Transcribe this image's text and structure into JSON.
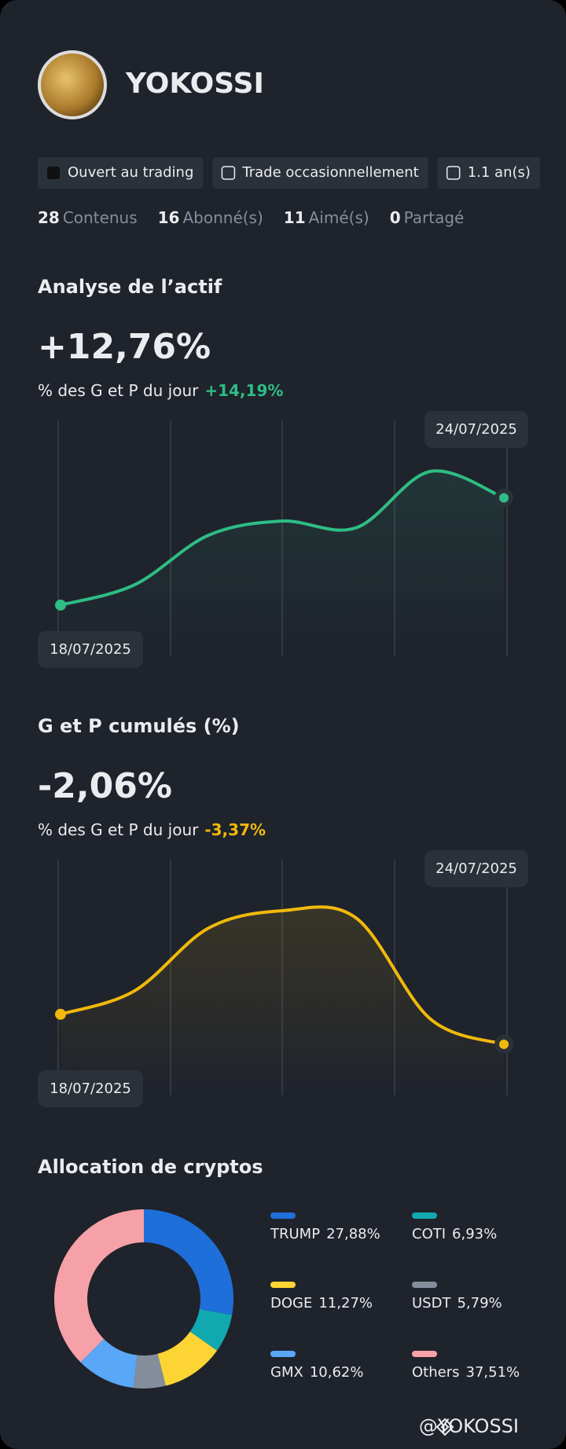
{
  "profile": {
    "name": "YOKOSSI",
    "badges": [
      "Ouvert au trading",
      "Trade occasionnellement",
      "1.1 an(s)"
    ],
    "stats": [
      {
        "count": "28",
        "label": "Contenus"
      },
      {
        "count": "16",
        "label": "Abonné(s)"
      },
      {
        "count": "11",
        "label": "Aimé(s)"
      },
      {
        "count": "0",
        "label": "Partagé"
      }
    ]
  },
  "charts": [
    {
      "type": "line",
      "title": "Analyse de l’actif",
      "headline": "+12,76%",
      "subtitle": "% des G et P du jour",
      "day_change": "+14,19%",
      "color": "#2ebd85",
      "start_date": "18/07/2025",
      "end_date": "24/07/2025",
      "values": [
        0,
        2.4,
        8.3,
        10.0,
        9.2,
        15.9,
        12.76
      ]
    },
    {
      "type": "line",
      "title": "G et P cumulés (%)",
      "headline": "-2,06%",
      "subtitle": "% des G et P du jour",
      "day_change": "-3,37%",
      "color": "#f0b90b",
      "start_date": "18/07/2025",
      "end_date": "24/07/2025",
      "values": [
        0,
        1.6,
        5.9,
        7.1,
        6.6,
        -0.3,
        -2.06
      ]
    },
    {
      "type": "pie",
      "title": "Allocation de cryptos",
      "series": [
        {
          "name": "TRUMP",
          "value": 27.88,
          "label": "27,88%",
          "color": "#1e6fd9"
        },
        {
          "name": "COTI",
          "value": 6.93,
          "label": "6,93%",
          "color": "#12a8b0"
        },
        {
          "name": "DOGE",
          "value": 11.27,
          "label": "11,27%",
          "color": "#fcd535"
        },
        {
          "name": "USDT",
          "value": 5.79,
          "label": "5,79%",
          "color": "#848e9c"
        },
        {
          "name": "GMX",
          "value": 10.62,
          "label": "10,62%",
          "color": "#5aa7f7"
        },
        {
          "name": "Others",
          "value": 37.51,
          "label": "37,51%",
          "color": "#f6a0a8"
        }
      ]
    }
  ],
  "footer": "@YOKOSSI"
}
